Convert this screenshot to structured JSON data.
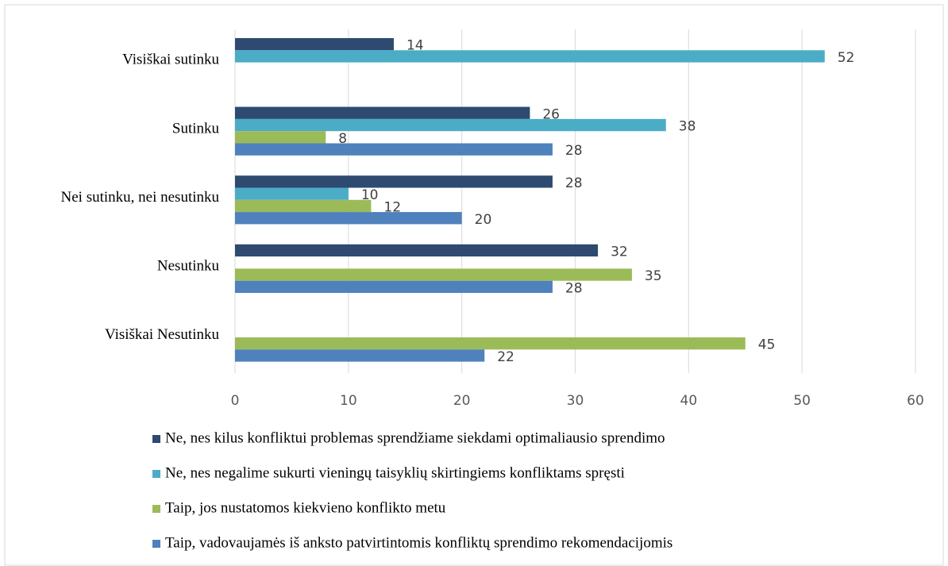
{
  "chart_data": {
    "type": "hbar",
    "categories": [
      "Visiškai sutinku",
      "Sutinku",
      "Nei sutinku, nei nesutinku",
      "Nesutinku",
      "Visiškai Nesutinku"
    ],
    "series": [
      {
        "name": "Ne, nes kilus konfliktui problemas sprendžiame siekdami optimaliausio sprendimo",
        "color": "#2e4a70",
        "values": [
          14,
          26,
          28,
          32,
          null
        ]
      },
      {
        "name": "Ne, nes negalime sukurti vieningų taisyklių skirtingiems konfliktams spręsti",
        "color": "#4bacc6",
        "values": [
          52,
          38,
          10,
          null,
          null
        ]
      },
      {
        "name": "Taip, jos nustatomos kiekvieno konflikto metu",
        "color": "#9bbb59",
        "values": [
          null,
          8,
          12,
          35,
          45
        ]
      },
      {
        "name": "Taip, vadovaujamės iš anksto patvirtintomis konfliktų sprendimo rekomendacijomis",
        "color": "#4f81bd",
        "values": [
          null,
          28,
          20,
          28,
          22
        ]
      }
    ],
    "xlim": [
      0,
      60
    ],
    "xticks": [
      0,
      10,
      20,
      30,
      40,
      50,
      60
    ],
    "grid": true,
    "legend": "bottom"
  }
}
